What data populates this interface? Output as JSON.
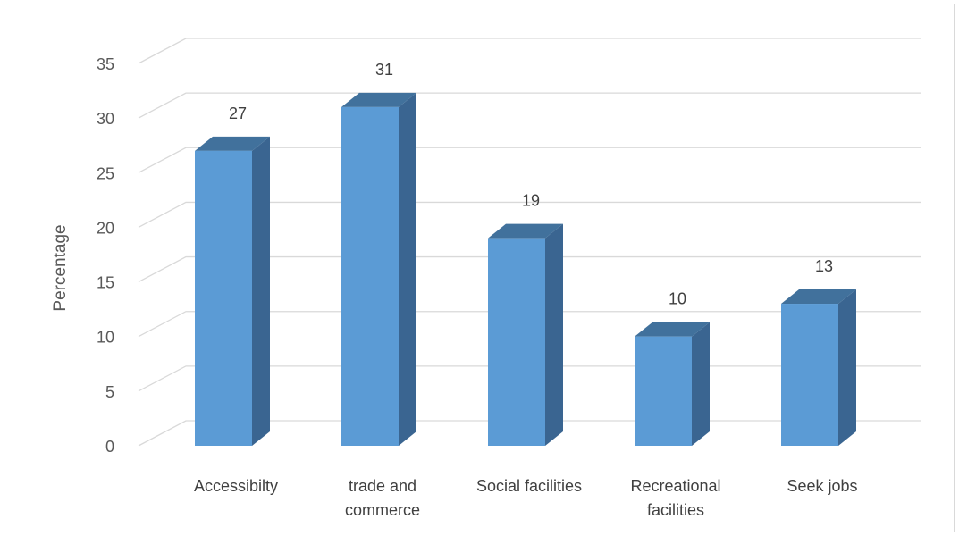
{
  "chart_data": {
    "type": "bar",
    "categories": [
      [
        "Accessibilty"
      ],
      [
        "trade and",
        "commerce"
      ],
      [
        "Social facilities"
      ],
      [
        "Recreational",
        "facilities"
      ],
      [
        "Seek jobs"
      ]
    ],
    "values": [
      27,
      31,
      19,
      10,
      13
    ],
    "ylabel": "Percentage",
    "ylim": [
      0,
      35
    ],
    "yticks": [
      0,
      5,
      10,
      15,
      20,
      25,
      30,
      35
    ],
    "grid": true,
    "three_d": true,
    "colors": {
      "front": "#5b9bd5",
      "side": "#3a6591",
      "top": "#41719c",
      "grid": "#d9d9d9"
    }
  }
}
